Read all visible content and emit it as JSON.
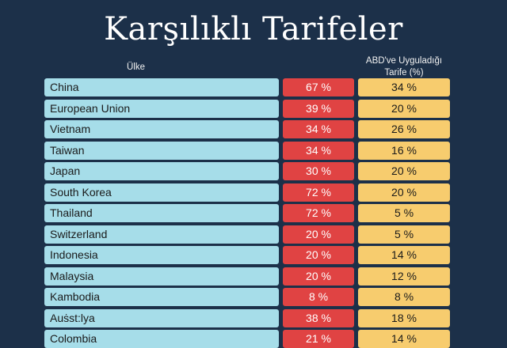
{
  "chart_data": {
    "type": "table",
    "title": "Karşılıklı Tarifeler",
    "columns": [
      "Ülke",
      "",
      "ABD've Uyguladığı Tarife (%)"
    ],
    "header_country": "Ülke",
    "header_us_line1": "ABD've Uyguladığı",
    "header_us_line2": "Tarife (%)",
    "colors": {
      "background": "#1c3049",
      "country": "#a6dde9",
      "tariff": "#e04343",
      "us_tariff": "#f7cc6e"
    },
    "rows": [
      {
        "country": "China",
        "tariff": "67 %",
        "us": "34 %"
      },
      {
        "country": "European Union",
        "tariff": "39 %",
        "us": "20 %"
      },
      {
        "country": "Vietnam",
        "tariff": "34 %",
        "us": "26 %"
      },
      {
        "country": "Taiwan",
        "tariff": "34 %",
        "us": "16 %"
      },
      {
        "country": "Japan",
        "tariff": "30 %",
        "us": "20 %"
      },
      {
        "country": "South Korea",
        "tariff": "72 %",
        "us": "20 %"
      },
      {
        "country": "Thailand",
        "tariff": "72 %",
        "us": "5 %"
      },
      {
        "country": "Switzerland",
        "tariff": "20 %",
        "us": "5 %"
      },
      {
        "country": "Indonesia",
        "tariff": "20 %",
        "us": "14 %"
      },
      {
        "country": "Malaysia",
        "tariff": "20 %",
        "us": "12 %"
      },
      {
        "country": "Kambodia",
        "tariff": "8 %",
        "us": "8 %"
      },
      {
        "country": "Auṡst:lya",
        "tariff": "38 %",
        "us": "18 %"
      },
      {
        "country": "Colombia",
        "tariff": "21 %",
        "us": "14 %"
      }
    ]
  }
}
